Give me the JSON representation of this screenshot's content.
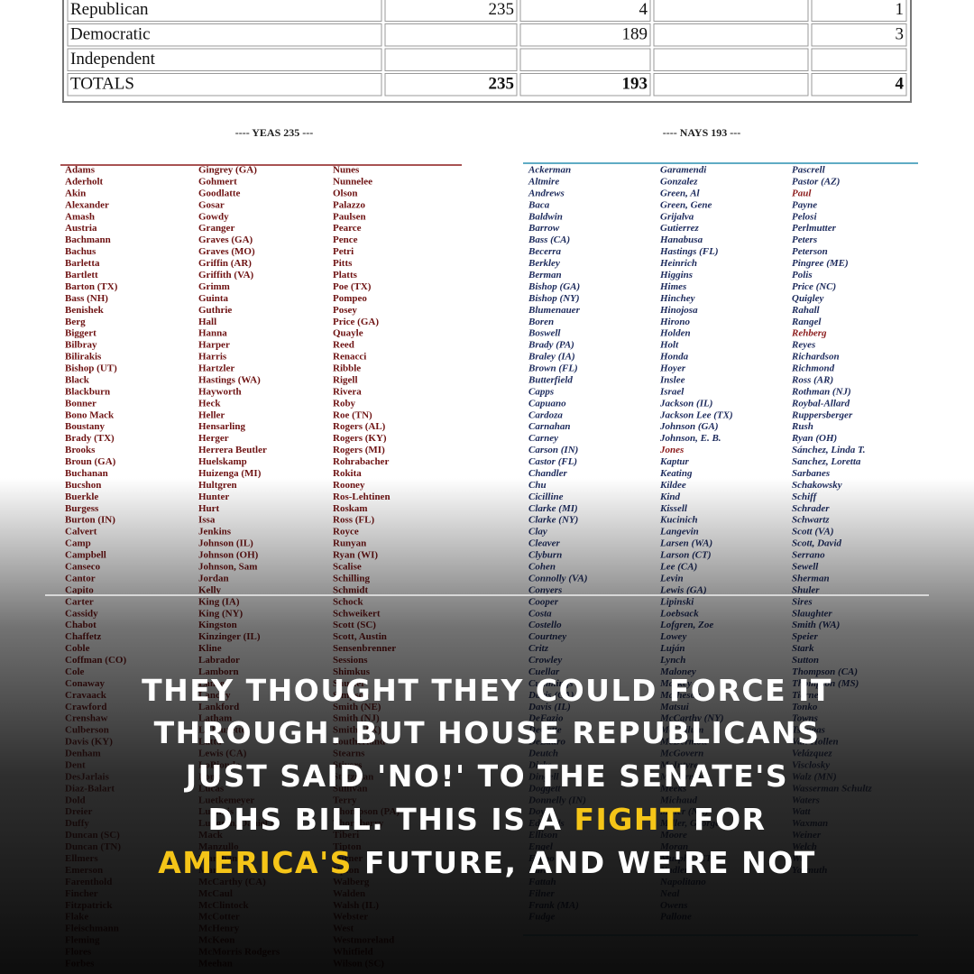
{
  "table": {
    "rows": [
      [
        "Republican",
        235,
        4,
        null,
        1
      ],
      [
        "Democratic",
        null,
        189,
        null,
        3
      ],
      [
        "Independent",
        null,
        null,
        null,
        null
      ],
      [
        "TOTALS",
        235,
        193,
        null,
        4
      ]
    ]
  },
  "yeas": {
    "heading": "---- YEAS    235 ---",
    "color": "#6e1212",
    "rule_color": "#8b1a1a",
    "columns": [
      [
        "Adams",
        "Aderholt",
        "Akin",
        "Alexander",
        "Amash",
        "Austria",
        "Bachmann",
        "Bachus",
        "Barletta",
        "Bartlett",
        "Barton (TX)",
        "Bass (NH)",
        "Benishek",
        "Berg",
        "Biggert",
        "Bilbray",
        "Bilirakis",
        "Bishop (UT)",
        "Black",
        "Blackburn",
        "Bonner",
        "Bono Mack",
        "Boustany",
        "Brady (TX)",
        "Brooks",
        "Broun (GA)",
        "Buchanan",
        "Bucshon",
        "Buerkle",
        "Burgess",
        "Burton (IN)",
        "Calvert",
        "Camp",
        "Campbell",
        "Canseco",
        "Cantor",
        "Capito",
        "Carter",
        "Cassidy",
        "Chabot",
        "Chaffetz",
        "Coble",
        "Coffman (CO)",
        "Cole",
        "Conaway",
        "Cravaack",
        "Crawford",
        "Crenshaw",
        "Culberson",
        "Davis (KY)",
        "Denham",
        "Dent",
        "DesJarlais",
        "Diaz-Balart",
        "Dold",
        "Dreier",
        "Duffy",
        "Duncan (SC)",
        "Duncan (TN)",
        "Ellmers",
        "Emerson",
        "Farenthold",
        "Fincher",
        "Fitzpatrick",
        "Flake",
        "Fleischmann",
        "Fleming",
        "Flores",
        "Forbes"
      ],
      [
        "Gingrey (GA)",
        "Gohmert",
        "Goodlatte",
        "Gosar",
        "Gowdy",
        "Granger",
        "Graves (GA)",
        "Graves (MO)",
        "Griffin (AR)",
        "Griffith (VA)",
        "Grimm",
        "Guinta",
        "Guthrie",
        "Hall",
        "Hanna",
        "Harper",
        "Harris",
        "Hartzler",
        "Hastings (WA)",
        "Hayworth",
        "Heck",
        "Heller",
        "Hensarling",
        "Herger",
        "Herrera Beutler",
        "Huelskamp",
        "Huizenga (MI)",
        "Hultgren",
        "Hunter",
        "Hurt",
        "Issa",
        "Jenkins",
        "Johnson (IL)",
        "Johnson (OH)",
        "Johnson, Sam",
        "Jordan",
        "Kelly",
        "King (IA)",
        "King (NY)",
        "Kingston",
        "Kinzinger (IL)",
        "Kline",
        "Labrador",
        "Lamborn",
        "Lance",
        "Landry",
        "Lankford",
        "Latham",
        "LaTourette",
        "Latta",
        "Lewis (CA)",
        "LoBiondo",
        "Long",
        "Lucas",
        "Luetkemeyer",
        "Lummis",
        "Lungren, Daniel E.",
        "Mack",
        "Manzullo",
        "Marchant",
        "Marino",
        "McCarthy (CA)",
        "McCaul",
        "McClintock",
        "McCotter",
        "McHenry",
        "McKeon",
        "McMorris Rodgers",
        "Meehan"
      ],
      [
        "Nunes",
        "Nunnelee",
        "Olson",
        "Palazzo",
        "Paulsen",
        "Pearce",
        "Pence",
        "Petri",
        "Pitts",
        "Platts",
        "Poe (TX)",
        "Pompeo",
        "Posey",
        "Price (GA)",
        "Quayle",
        "Reed",
        "Renacci",
        "Ribble",
        "Rigell",
        "Rivera",
        "Roby",
        "Roe (TN)",
        "Rogers (AL)",
        "Rogers (KY)",
        "Rogers (MI)",
        "Rohrabacher",
        "Rokita",
        "Rooney",
        "Ros-Lehtinen",
        "Roskam",
        "Ross (FL)",
        "Royce",
        "Runyan",
        "Ryan (WI)",
        "Scalise",
        "Schilling",
        "Schmidt",
        "Schock",
        "Schweikert",
        "Scott (SC)",
        "Scott, Austin",
        "Sensenbrenner",
        "Sessions",
        "Shimkus",
        "Shuster",
        "Simpson",
        "Smith (NE)",
        "Smith (NJ)",
        "Smith (TX)",
        "Southerland",
        "Stearns",
        "Stivers",
        "Stutzman",
        "Sullivan",
        "Terry",
        "Thompson (PA)",
        "Thornberry",
        "Tiberi",
        "Tipton",
        "Turner",
        "Upton",
        "Walberg",
        "Walden",
        "Walsh (IL)",
        "Webster",
        "West",
        "Westmoreland",
        "Whitfield",
        "Wilson (SC)"
      ]
    ]
  },
  "nays": {
    "heading": "---- NAYS    193 ---",
    "color": "#1c2a5c",
    "rule_color": "#2a8fb0",
    "columns": [
      [
        "Ackerman",
        "Altmire",
        "Andrews",
        "Baca",
        "Baldwin",
        "Barrow",
        "Bass (CA)",
        "Becerra",
        "Berkley",
        "Berman",
        "Bishop (GA)",
        "Bishop (NY)",
        "Blumenauer",
        "Boren",
        "Boswell",
        "Brady (PA)",
        "Braley (IA)",
        "Brown (FL)",
        "Butterfield",
        "Capps",
        "Capuano",
        "Cardoza",
        "Carnahan",
        "Carney",
        "Carson (IN)",
        "Castor (FL)",
        "Chandler",
        "Chu",
        "Cicilline",
        "Clarke (MI)",
        "Clarke (NY)",
        "Clay",
        "Cleaver",
        "Clyburn",
        "Cohen",
        "Connolly (VA)",
        "Conyers",
        "Cooper",
        "Costa",
        "Costello",
        "Courtney",
        "Critz",
        "Crowley",
        "Cuellar",
        "Cummings",
        "Davis (CA)",
        "Davis (IL)",
        "DeFazio",
        "DeGette",
        "DeLauro",
        "Deutch",
        "Dicks",
        "Dingell",
        "Doggett",
        "Donnelly (IN)",
        "Doyle",
        "Edwards",
        "Ellison",
        "Engel",
        "Eshoo",
        "Farr",
        "Fattah",
        "Filner",
        "Frank (MA)",
        "Fudge"
      ],
      [
        "Garamendi",
        "Gonzalez",
        "Green, Al",
        "Green, Gene",
        "Grijalva",
        "Gutierrez",
        "Hanabusa",
        "Hastings (FL)",
        "Heinrich",
        "Higgins",
        "Himes",
        "Hinchey",
        "Hinojosa",
        "Hirono",
        "Holden",
        "Holt",
        "Honda",
        "Hoyer",
        "Inslee",
        "Israel",
        "Jackson (IL)",
        "Jackson Lee (TX)",
        "Johnson (GA)",
        "Johnson, E. B.",
        {
          "name": "Jones",
          "color": "#8b1a1a"
        },
        "Kaptur",
        "Keating",
        "Kildee",
        "Kind",
        "Kissell",
        "Kucinich",
        "Langevin",
        "Larsen (WA)",
        "Larson (CT)",
        "Lee (CA)",
        "Levin",
        "Lewis (GA)",
        "Lipinski",
        "Loebsack",
        "Lofgren, Zoe",
        "Lowey",
        "Luján",
        "Lynch",
        "Maloney",
        "Markey",
        "Matheson",
        "Matsui",
        "McCarthy (NY)",
        "McCollum",
        "McDermott",
        "McGovern",
        "McIntyre",
        "McNerney",
        "Meeks",
        "Michaud",
        "Miller (NC)",
        "Miller, George",
        "Moore",
        "Moran",
        "Murphy (CT)",
        "Nadler",
        "Napolitano",
        "Neal",
        "Owens",
        "Pallone"
      ],
      [
        "Pascrell",
        "Pastor (AZ)",
        {
          "name": "Paul",
          "color": "#8b1a1a"
        },
        "Payne",
        "Pelosi",
        "Perlmutter",
        "Peters",
        "Peterson",
        "Pingree (ME)",
        "Polis",
        "Price (NC)",
        "Quigley",
        "Rahall",
        "Rangel",
        {
          "name": "Rehberg",
          "color": "#8b1a1a"
        },
        "Reyes",
        "Richardson",
        "Richmond",
        "Ross (AR)",
        "Rothman (NJ)",
        "Roybal-Allard",
        "Ruppersberger",
        "Rush",
        "Ryan (OH)",
        "Sánchez, Linda T.",
        "Sanchez, Loretta",
        "Sarbanes",
        "Schakowsky",
        "Schiff",
        "Schrader",
        "Schwartz",
        "Scott (VA)",
        "Scott, David",
        "Serrano",
        "Sewell",
        "Sherman",
        "Shuler",
        "Sires",
        "Slaughter",
        "Smith (WA)",
        "Speier",
        "Stark",
        "Sutton",
        "Thompson (CA)",
        "Thompson (MS)",
        "Tierney",
        "Tonko",
        "Towns",
        "Tsongas",
        "Van Hollen",
        "Velázquez",
        "Visclosky",
        "Walz (MN)",
        "Wasserman Schultz",
        "Waters",
        "Watt",
        "Waxman",
        "Weiner",
        "Welch",
        "Wu",
        "Yarmuth"
      ]
    ]
  },
  "overlay": {
    "highlight_color": "#f5c518",
    "lines": [
      [
        {
          "text": "THEY THOUGHT THEY COULD FORCE IT"
        }
      ],
      [
        {
          "text": "THROUGH. BUT HOUSE REPUBLICANS"
        }
      ],
      [
        {
          "text": "JUST SAID 'NO!' TO THE SENATE'S"
        }
      ],
      [
        {
          "text": "DHS BILL. THIS IS A "
        },
        {
          "text": "FIGHT",
          "highlight": true
        },
        {
          "text": " FOR"
        }
      ],
      [
        {
          "text": "AMERICA'S",
          "highlight": true
        },
        {
          "text": " FUTURE, AND WE'RE NOT"
        }
      ]
    ]
  }
}
